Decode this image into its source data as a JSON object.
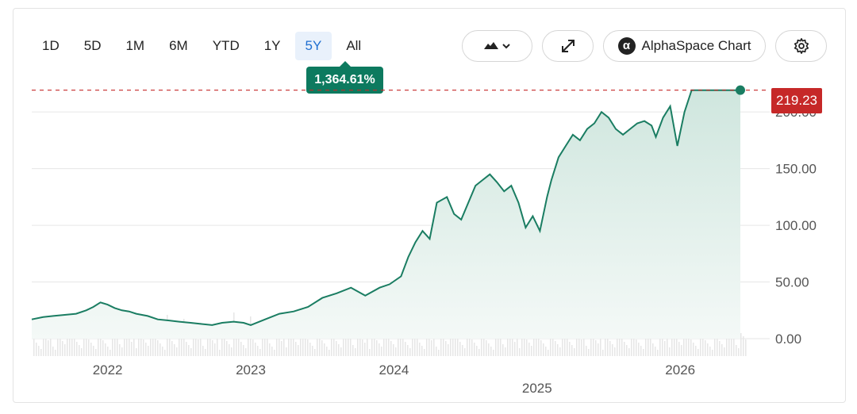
{
  "toolbar": {
    "ranges": [
      "1D",
      "5D",
      "1M",
      "6M",
      "YTD",
      "1Y",
      "5Y",
      "All"
    ],
    "active_range": "5Y",
    "chart_type_icon": "mountain-chart-icon",
    "expand_icon": "expand-icon",
    "alpha_label": "AlphaSpace Chart",
    "alpha_logo": "α",
    "settings_icon": "gear-icon"
  },
  "performance": {
    "value": "1,364.61%"
  },
  "last_price": {
    "value": "219.23"
  },
  "colors": {
    "line": "#1a7d62",
    "area_top": "#cfe6de",
    "area_bottom": "#f2f8f6",
    "price_tag": "#c62828",
    "volume": "#e3e3e3",
    "grid": "#e6e6e6"
  },
  "chart_data": {
    "type": "area",
    "ylim": [
      0,
      240
    ],
    "y_ticks": [
      "0.00",
      "50.00",
      "100.00",
      "150.00",
      "200.00"
    ],
    "y_tick_values": [
      0,
      50,
      100,
      150,
      200
    ],
    "x_ticks": [
      {
        "label": "2022",
        "x": 2022.0
      },
      {
        "label": "2023",
        "x": 2023.0
      },
      {
        "label": "2024",
        "x": 2024.0
      },
      {
        "label": "2025",
        "x": 2025.0
      },
      {
        "label": "2026",
        "x": 2026.0
      }
    ],
    "xlim": [
      2021.47,
      2026.47
    ],
    "reference_line": 219.23,
    "series": [
      {
        "x": [
          2021.47,
          2021.55,
          2021.62,
          2021.7,
          2021.78,
          2021.85,
          2021.9,
          2021.95,
          2022.0,
          2022.05,
          2022.1,
          2022.15,
          2022.2,
          2022.28,
          2022.35,
          2022.43,
          2022.5,
          2022.58,
          2022.65,
          2022.73,
          2022.8,
          2022.88,
          2022.95,
          2023.0,
          2023.1,
          2023.2,
          2023.3,
          2023.35,
          2023.4,
          2023.5,
          2023.6,
          2023.7,
          2023.8,
          2023.9,
          2023.97,
          2024.05,
          2024.1,
          2024.15,
          2024.2,
          2024.25,
          2024.3,
          2024.37,
          2024.42,
          2024.47,
          2024.52,
          2024.57,
          2024.62,
          2024.67,
          2024.72,
          2024.77,
          2024.82,
          2024.87,
          2024.92,
          2024.97,
          2025.02,
          2025.07,
          2025.1,
          2025.15,
          2025.2,
          2025.25,
          2025.3,
          2025.35,
          2025.4,
          2025.45,
          2025.5,
          2025.55,
          2025.6,
          2025.65,
          2025.7,
          2025.75,
          2025.8,
          2025.83,
          2025.88,
          2025.93,
          2025.98,
          2026.03,
          2026.08,
          2026.13,
          2026.18,
          2026.23,
          2026.28,
          2026.33,
          2026.38,
          2026.42
        ],
        "y": [
          17,
          19,
          20,
          21,
          22,
          25,
          28,
          32,
          30,
          27,
          25,
          24,
          22,
          20,
          17,
          16,
          15,
          14,
          13,
          12,
          14,
          15,
          14,
          12,
          17,
          22,
          24,
          26,
          28,
          36,
          40,
          45,
          38,
          45,
          48,
          55,
          72,
          85,
          95,
          88,
          120,
          125,
          110,
          105,
          120,
          135,
          140,
          145,
          138,
          130,
          135,
          120,
          98,
          108,
          95,
          125,
          140,
          160,
          170,
          180,
          175,
          185,
          190,
          200,
          195,
          185,
          180,
          185,
          190,
          192,
          188,
          178,
          195,
          205,
          170,
          200,
          219.23,
          219.23,
          219.23,
          219.23,
          219.23,
          219.23,
          219.23,
          219.23
        ]
      }
    ]
  }
}
